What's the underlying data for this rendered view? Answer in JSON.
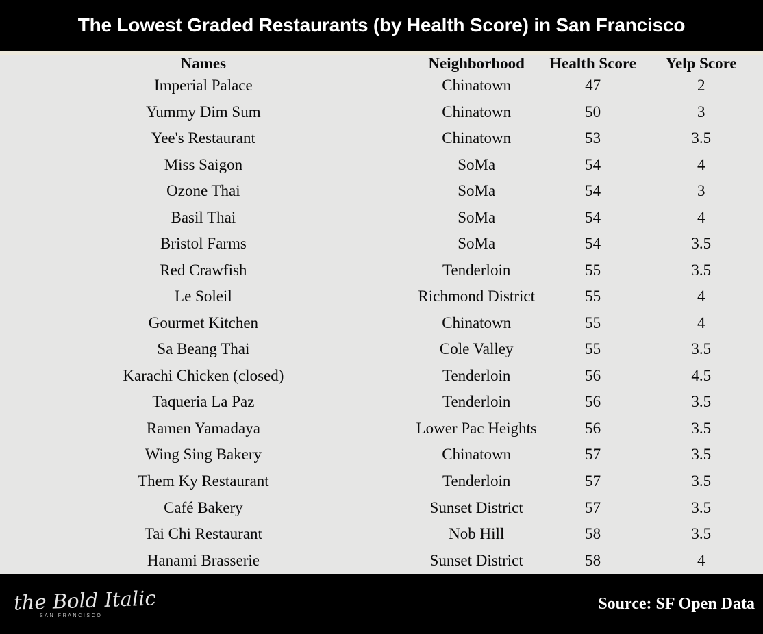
{
  "header": {
    "title": "The Lowest Graded Restaurants (by Health Score) in San Francisco"
  },
  "table": {
    "columns": [
      "Names",
      "Neighborhood",
      "Health Score",
      "Yelp Score"
    ],
    "rows": [
      {
        "name": "Imperial Palace",
        "neighborhood": "Chinatown",
        "health_score": 47,
        "yelp_score": 2
      },
      {
        "name": "Yummy Dim Sum",
        "neighborhood": "Chinatown",
        "health_score": 50,
        "yelp_score": 3
      },
      {
        "name": "Yee's Restaurant",
        "neighborhood": "Chinatown",
        "health_score": 53,
        "yelp_score": 3.5
      },
      {
        "name": "Miss Saigon",
        "neighborhood": "SoMa",
        "health_score": 54,
        "yelp_score": 4
      },
      {
        "name": "Ozone Thai",
        "neighborhood": "SoMa",
        "health_score": 54,
        "yelp_score": 3
      },
      {
        "name": "Basil Thai",
        "neighborhood": "SoMa",
        "health_score": 54,
        "yelp_score": 4
      },
      {
        "name": "Bristol Farms",
        "neighborhood": "SoMa",
        "health_score": 54,
        "yelp_score": 3.5
      },
      {
        "name": "Red Crawfish",
        "neighborhood": "Tenderloin",
        "health_score": 55,
        "yelp_score": 3.5
      },
      {
        "name": "Le Soleil",
        "neighborhood": "Richmond District",
        "health_score": 55,
        "yelp_score": 4
      },
      {
        "name": "Gourmet Kitchen",
        "neighborhood": "Chinatown",
        "health_score": 55,
        "yelp_score": 4
      },
      {
        "name": "Sa Beang Thai",
        "neighborhood": "Cole Valley",
        "health_score": 55,
        "yelp_score": 3.5
      },
      {
        "name": "Karachi Chicken (closed)",
        "neighborhood": "Tenderloin",
        "health_score": 56,
        "yelp_score": 4.5
      },
      {
        "name": "Taqueria La Paz",
        "neighborhood": "Tenderloin",
        "health_score": 56,
        "yelp_score": 3.5
      },
      {
        "name": "Ramen Yamadaya",
        "neighborhood": "Lower Pac Heights",
        "health_score": 56,
        "yelp_score": 3.5
      },
      {
        "name": "Wing Sing Bakery",
        "neighborhood": "Chinatown",
        "health_score": 57,
        "yelp_score": 3.5
      },
      {
        "name": "Them Ky Restaurant",
        "neighborhood": "Tenderloin",
        "health_score": 57,
        "yelp_score": 3.5
      },
      {
        "name": "Café Bakery",
        "neighborhood": "Sunset District",
        "health_score": 57,
        "yelp_score": 3.5
      },
      {
        "name": "Tai Chi Restaurant",
        "neighborhood": "Nob Hill",
        "health_score": 58,
        "yelp_score": 3.5
      },
      {
        "name": "Hanami Brasserie",
        "neighborhood": "Sunset District",
        "health_score": 58,
        "yelp_score": 4
      }
    ]
  },
  "footer": {
    "logo_text": "the Bold Italic",
    "logo_subtext": "SAN FRANCISCO",
    "source_label": "Source: SF Open Data"
  },
  "colors": {
    "header_bg": "#000000",
    "footer_bg": "#000000",
    "divider": "#EDE9DC",
    "table_bg": "#E6E6E5",
    "title_text": "#FFFFFF",
    "body_text": "#0A0A0A"
  },
  "chart_data": {
    "type": "table",
    "title": "The Lowest Graded Restaurants (by Health Score) in San Francisco",
    "columns": [
      "Names",
      "Neighborhood",
      "Health Score",
      "Yelp Score"
    ],
    "rows": [
      [
        "Imperial Palace",
        "Chinatown",
        47,
        2
      ],
      [
        "Yummy Dim Sum",
        "Chinatown",
        50,
        3
      ],
      [
        "Yee's Restaurant",
        "Chinatown",
        53,
        3.5
      ],
      [
        "Miss Saigon",
        "SoMa",
        54,
        4
      ],
      [
        "Ozone Thai",
        "SoMa",
        54,
        3
      ],
      [
        "Basil Thai",
        "SoMa",
        54,
        4
      ],
      [
        "Bristol Farms",
        "SoMa",
        54,
        3.5
      ],
      [
        "Red Crawfish",
        "Tenderloin",
        55,
        3.5
      ],
      [
        "Le Soleil",
        "Richmond District",
        55,
        4
      ],
      [
        "Gourmet Kitchen",
        "Chinatown",
        55,
        4
      ],
      [
        "Sa Beang Thai",
        "Cole Valley",
        55,
        3.5
      ],
      [
        "Karachi Chicken (closed)",
        "Tenderloin",
        56,
        4.5
      ],
      [
        "Taqueria La Paz",
        "Tenderloin",
        56,
        3.5
      ],
      [
        "Ramen Yamadaya",
        "Lower Pac Heights",
        56,
        3.5
      ],
      [
        "Wing Sing Bakery",
        "Chinatown",
        57,
        3.5
      ],
      [
        "Them Ky Restaurant",
        "Tenderloin",
        57,
        3.5
      ],
      [
        "Café Bakery",
        "Sunset District",
        57,
        3.5
      ],
      [
        "Tai Chi Restaurant",
        "Nob Hill",
        58,
        3.5
      ],
      [
        "Hanami Brasserie",
        "Sunset District",
        58,
        4
      ]
    ],
    "source": "Source: SF Open Data"
  }
}
